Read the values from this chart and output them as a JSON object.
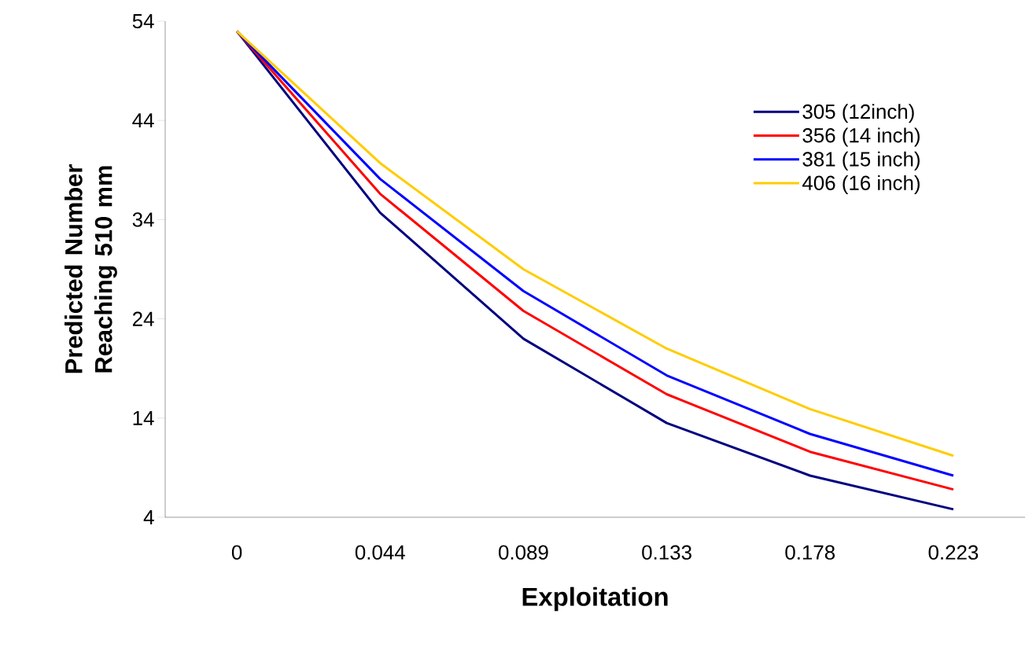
{
  "chart_data": {
    "type": "line",
    "xlabel": "Exploitation",
    "ylabel": "Predicted Number Reaching 510 mm",
    "categories": [
      "0",
      "0.044",
      "0.089",
      "0.133",
      "0.178",
      "0.223"
    ],
    "ylim": [
      4,
      54
    ],
    "yticks": [
      4,
      14,
      24,
      34,
      44,
      54
    ],
    "grid": false,
    "legend": "right",
    "marker": "none",
    "series": [
      {
        "name": "305 (12inch)",
        "color": "#000080",
        "values": [
          53.0,
          34.7,
          22.0,
          13.5,
          8.2,
          4.8
        ]
      },
      {
        "name": "356 (14 inch)",
        "color": "#ff0000",
        "values": [
          53.0,
          36.6,
          24.8,
          16.4,
          10.6,
          6.8
        ]
      },
      {
        "name": "381 (15 inch)",
        "color": "#0000ff",
        "values": [
          53.0,
          38.1,
          26.8,
          18.3,
          12.4,
          8.2
        ]
      },
      {
        "name": "406 (16 inch)",
        "color": "#ffcc00",
        "values": [
          53.0,
          39.7,
          29.0,
          21.0,
          14.9,
          10.2
        ]
      }
    ]
  }
}
